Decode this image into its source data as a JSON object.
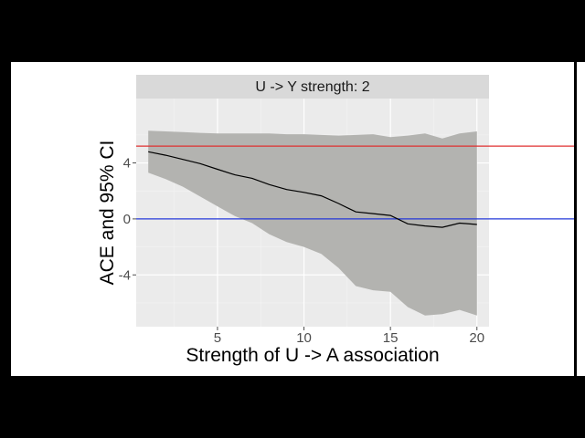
{
  "chart_data": {
    "type": "line",
    "facet_label": "U -> Y strength: 2",
    "xlabel": "Strength of U -> A association",
    "ylabel": "ACE and 95% CI",
    "xlim": [
      0.3,
      20.7
    ],
    "ylim": [
      -7.7,
      8.6
    ],
    "x_ticks": [
      5,
      10,
      15,
      20
    ],
    "y_ticks": [
      -4,
      0,
      4
    ],
    "x_tick_labels": [
      "5",
      "10",
      "15",
      "20"
    ],
    "y_tick_labels": [
      "-4",
      "0",
      "4"
    ],
    "grid": true,
    "reference_lines": [
      {
        "y": 5.2,
        "color": "#e03030"
      },
      {
        "y": 0,
        "color": "#2438d8"
      }
    ],
    "series": [
      {
        "color": "#000000",
        "band_color": "#b3b3b0",
        "x": [
          1,
          2,
          3,
          4,
          5,
          6,
          7,
          8,
          9,
          10,
          11,
          12,
          13,
          14,
          15,
          16,
          17,
          18,
          19,
          20
        ],
        "y": [
          4.8,
          4.55,
          4.25,
          3.95,
          3.55,
          3.15,
          2.9,
          2.45,
          2.1,
          1.9,
          1.65,
          1.1,
          0.5,
          0.38,
          0.25,
          -0.35,
          -0.5,
          -0.6,
          -0.3,
          -0.4
        ],
        "lower": [
          3.3,
          2.85,
          2.3,
          1.6,
          0.9,
          0.2,
          -0.3,
          -1.1,
          -1.65,
          -2.0,
          -2.5,
          -3.5,
          -4.8,
          -5.1,
          -5.2,
          -6.3,
          -6.9,
          -6.8,
          -6.5,
          -6.9
        ],
        "upper": [
          6.3,
          6.25,
          6.2,
          6.15,
          6.1,
          6.1,
          6.1,
          6.1,
          6.05,
          6.05,
          6.0,
          5.95,
          6.0,
          6.05,
          5.85,
          5.95,
          6.1,
          5.75,
          6.1,
          6.25
        ]
      }
    ]
  }
}
